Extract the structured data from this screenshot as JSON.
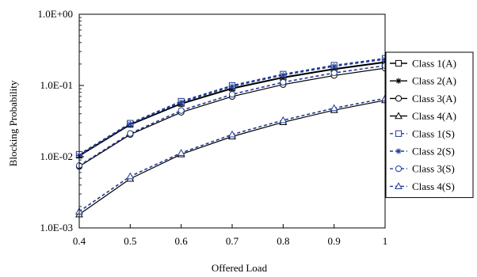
{
  "chart_data": {
    "type": "line",
    "title": "",
    "xlabel": "Offered Load",
    "ylabel": "Blocking Probability",
    "x": [
      0.4,
      0.5,
      0.6,
      0.7,
      0.8,
      0.9,
      1
    ],
    "x_tick_labels": [
      "0.4",
      "0.5",
      "0.6",
      "0.7",
      "0.8",
      "0.9",
      "1"
    ],
    "xlim": [
      0.4,
      1
    ],
    "y_scale": "log",
    "ylim": [
      0.001,
      1
    ],
    "y_ticks": [
      1,
      0.1,
      0.01,
      0.001
    ],
    "y_tick_labels": [
      "1.0E+00",
      "1.0E-01",
      "1.0E-02",
      "1.0E-03"
    ],
    "grid": false,
    "legend_position": "right",
    "series": [
      {
        "name": "Class 1(A)",
        "marker": "square",
        "line_style": "solid",
        "color": "#000000",
        "values": [
          0.0105,
          0.0285,
          0.056,
          0.092,
          0.131,
          0.172,
          0.215
        ]
      },
      {
        "name": "Class 2(A)",
        "marker": "star",
        "line_style": "solid",
        "color": "#000000",
        "values": [
          0.0102,
          0.028,
          0.055,
          0.09,
          0.128,
          0.168,
          0.21
        ]
      },
      {
        "name": "Class 3(A)",
        "marker": "circle",
        "line_style": "solid",
        "color": "#000000",
        "values": [
          0.0073,
          0.0205,
          0.042,
          0.07,
          0.103,
          0.138,
          0.175
        ]
      },
      {
        "name": "Class 4(A)",
        "marker": "triangle",
        "line_style": "solid",
        "color": "#000000",
        "values": [
          0.00155,
          0.0049,
          0.0108,
          0.0192,
          0.0305,
          0.045,
          0.062
        ]
      },
      {
        "name": "Class 1(S)",
        "marker": "square",
        "line_style": "dashed",
        "color": "#1f3a93",
        "values": [
          0.0108,
          0.0295,
          0.06,
          0.1,
          0.144,
          0.192,
          0.24
        ]
      },
      {
        "name": "Class 2(S)",
        "marker": "star",
        "line_style": "dashed",
        "color": "#1f3a93",
        "values": [
          0.0104,
          0.0288,
          0.058,
          0.097,
          0.14,
          0.186,
          0.233
        ]
      },
      {
        "name": "Class 3(S)",
        "marker": "circle",
        "line_style": "dashed",
        "color": "#1f3a93",
        "values": [
          0.0075,
          0.0212,
          0.0445,
          0.075,
          0.111,
          0.15,
          0.19
        ]
      },
      {
        "name": "Class 4(S)",
        "marker": "triangle",
        "line_style": "dashed",
        "color": "#1f3a93",
        "values": [
          0.0017,
          0.0053,
          0.0113,
          0.0205,
          0.0325,
          0.048,
          0.066
        ]
      }
    ]
  }
}
